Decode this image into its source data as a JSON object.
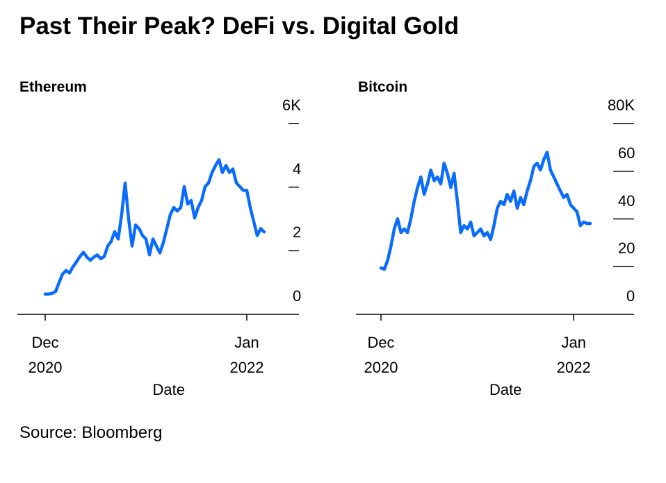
{
  "title": "Past Their Peak? DeFi vs. Digital Gold",
  "source": "Source: Bloomberg",
  "chart_data": [
    {
      "type": "line",
      "title": "Ethereum",
      "xlabel": "Date",
      "color": "#0a6cff",
      "categories": [
        "Dec 2020",
        null,
        null,
        null,
        null,
        null,
        null,
        null,
        null,
        null,
        null,
        null,
        null,
        null,
        null,
        null,
        null,
        null,
        null,
        null,
        null,
        null,
        null,
        null,
        null,
        null,
        null,
        null,
        null,
        null,
        null,
        null,
        null,
        null,
        null,
        null,
        null,
        null,
        null,
        null,
        null,
        null,
        null,
        null,
        null,
        null,
        null,
        null,
        null,
        null,
        null,
        null,
        null,
        null,
        null,
        null,
        null,
        null,
        "Jan 2022",
        null,
        null,
        null,
        null,
        null
      ],
      "values": [
        640,
        640,
        660,
        720,
        1000,
        1270,
        1380,
        1300,
        1500,
        1650,
        1820,
        1950,
        1800,
        1700,
        1800,
        1870,
        1750,
        1820,
        2150,
        2300,
        2600,
        2370,
        3140,
        4130,
        3000,
        2150,
        2810,
        2700,
        2480,
        2370,
        1870,
        2370,
        2150,
        1930,
        2260,
        2700,
        3140,
        3360,
        3250,
        3360,
        4020,
        3470,
        3580,
        3030,
        3360,
        3580,
        4020,
        4130,
        4460,
        4680,
        4860,
        4460,
        4680,
        4460,
        4570,
        4130,
        4020,
        3900,
        3900,
        3360,
        2920,
        2480,
        2700,
        2590
      ],
      "ylim": [
        0,
        6000
      ],
      "yticks": [
        0,
        {
          "value": 2000,
          "label": "2"
        },
        {
          "value": 4000,
          "label": "4"
        },
        {
          "value": 6000,
          "label": "6K"
        }
      ]
    },
    {
      "type": "line",
      "title": "Bitcoin",
      "xlabel": "Date",
      "color": "#0a6cff",
      "categories": [
        "Dec 2020",
        null,
        null,
        null,
        null,
        null,
        null,
        null,
        null,
        null,
        null,
        null,
        null,
        null,
        null,
        null,
        null,
        null,
        null,
        null,
        null,
        null,
        null,
        null,
        null,
        null,
        null,
        null,
        null,
        null,
        null,
        null,
        null,
        null,
        null,
        null,
        null,
        null,
        null,
        null,
        null,
        null,
        null,
        null,
        null,
        null,
        null,
        null,
        null,
        null,
        null,
        null,
        null,
        null,
        null,
        null,
        null,
        null,
        "Jan 2022",
        null,
        null,
        null,
        null,
        null
      ],
      "values": [
        19500,
        18900,
        22700,
        28500,
        35800,
        40100,
        34300,
        35800,
        34300,
        40100,
        47400,
        53200,
        57600,
        50300,
        54700,
        60500,
        56100,
        57600,
        54700,
        63400,
        59100,
        53200,
        59100,
        47400,
        34300,
        37200,
        35800,
        38700,
        32900,
        34300,
        35800,
        32900,
        34300,
        31400,
        37200,
        44500,
        47400,
        46000,
        50300,
        47400,
        51700,
        44500,
        49000,
        46000,
        51700,
        56100,
        62000,
        63400,
        60500,
        64900,
        68000,
        60500,
        57600,
        54700,
        51700,
        49000,
        50300,
        46000,
        44500,
        43000,
        37200,
        38700,
        38100,
        38100
      ],
      "ylim": [
        0,
        80000
      ],
      "yticks": [
        0,
        {
          "value": 20000,
          "label": "20"
        },
        {
          "value": 40000,
          "label": "40"
        },
        {
          "value": 60000,
          "label": "60"
        },
        {
          "value": 80000,
          "label": "80K"
        }
      ]
    }
  ]
}
